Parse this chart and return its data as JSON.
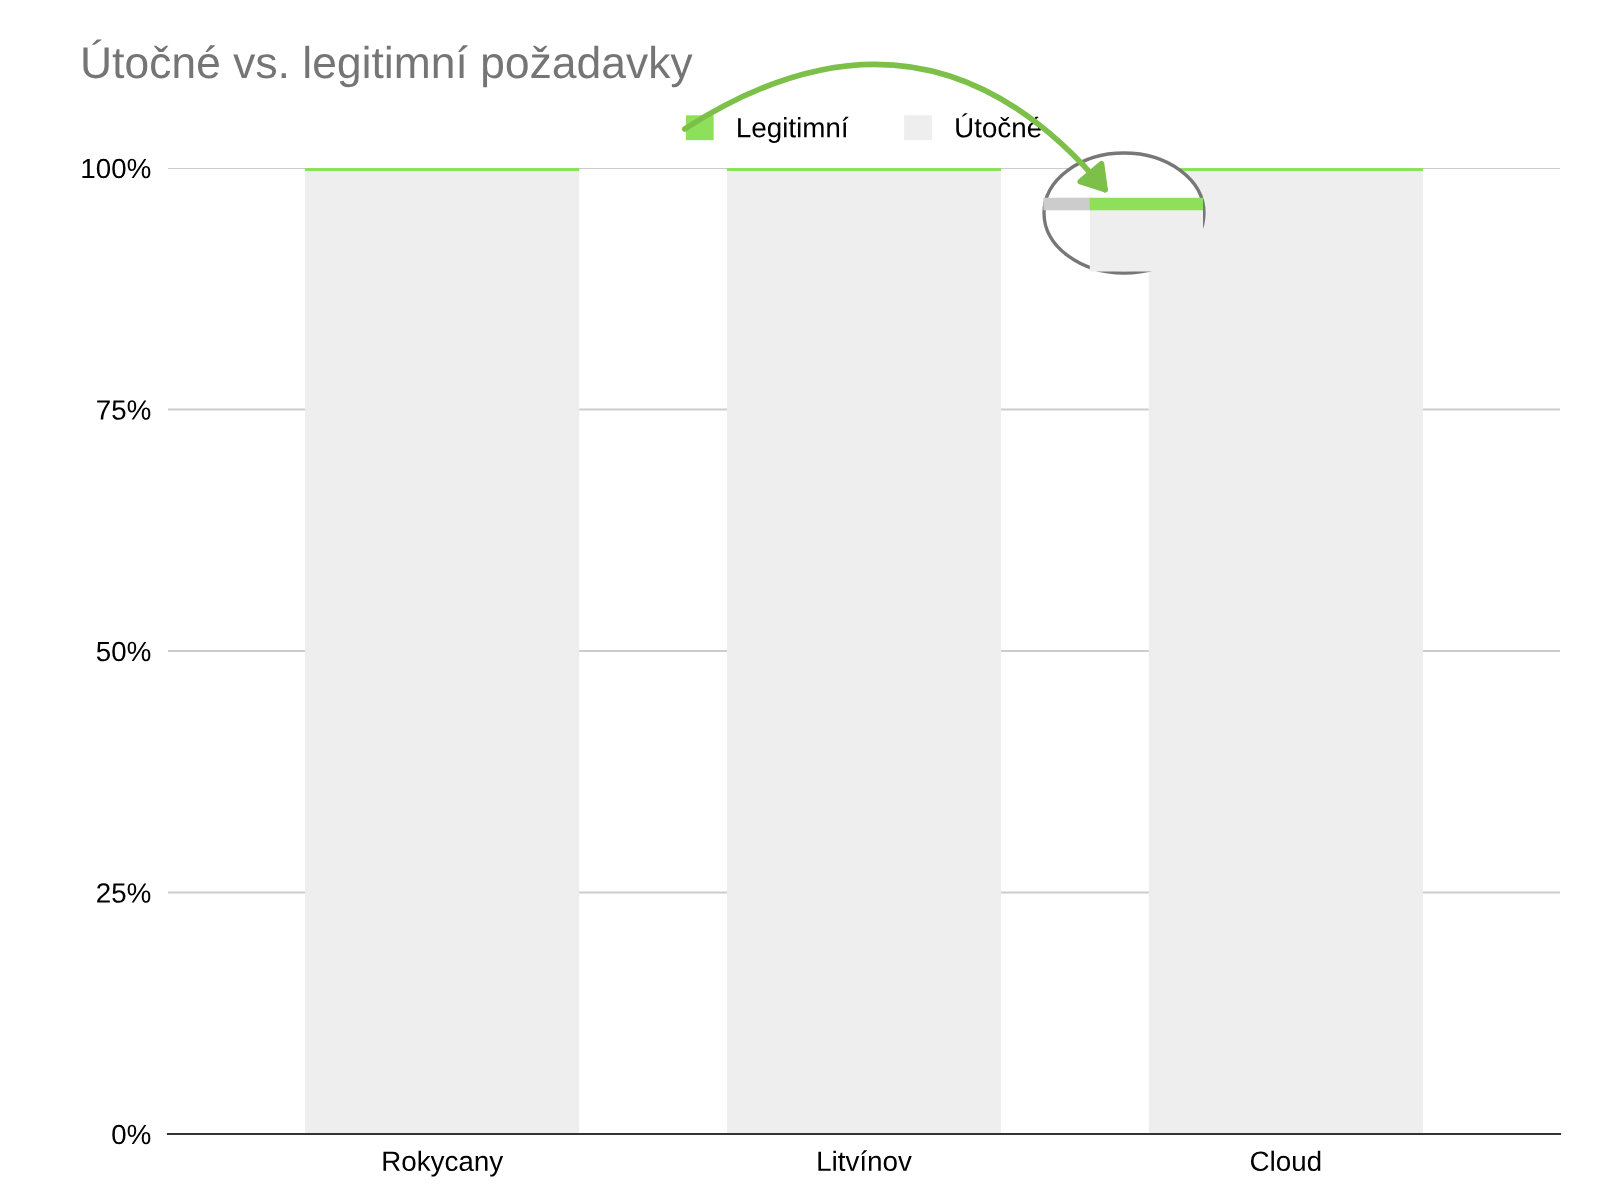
{
  "chart_data": {
    "type": "bar",
    "title": "Útočné vs. legitimní požadavky",
    "categories": [
      "Rokycany",
      "Litvínov",
      "Cloud"
    ],
    "stacked": true,
    "series": [
      {
        "name": "Útočné",
        "color": "#eeeeee",
        "values": [
          99.7,
          99.7,
          99.7
        ]
      },
      {
        "name": "Legitimní",
        "color": "#8ee05a",
        "values": [
          0.3,
          0.3,
          0.3
        ]
      }
    ],
    "ylim": [
      0,
      100
    ],
    "yticks": [
      {
        "value": 0,
        "label": "0%"
      },
      {
        "value": 25,
        "label": "25%"
      },
      {
        "value": 50,
        "label": "50%"
      },
      {
        "value": 75,
        "label": "75%"
      },
      {
        "value": 100,
        "label": "100%"
      }
    ],
    "grid": "y",
    "legend": "top"
  }
}
